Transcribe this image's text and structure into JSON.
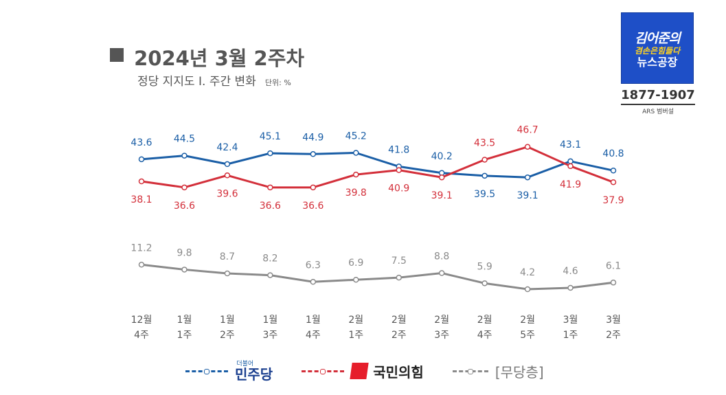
{
  "header": {
    "title": "2024년 3월 2주차",
    "subtitle": "정당 지지도 Ⅰ. 주간 변화",
    "unit": "단위: %"
  },
  "logo": {
    "line1": "김어준의",
    "line2": "겸손은힘들다",
    "line3": "뉴스공장",
    "phone": "1877-1907",
    "ars": "ARS 범버설"
  },
  "legend": {
    "minjoo": "민주당",
    "minjoo_prefix": "더불어",
    "ppp": "국민의힘",
    "independent": "[무당층]"
  },
  "colors": {
    "minjoo": "#1a5ea6",
    "ppp": "#d32f3a",
    "independent": "#8a8a8a"
  },
  "chart_data": {
    "type": "line",
    "categories": [
      [
        "12월",
        "4주"
      ],
      [
        "1월",
        "1주"
      ],
      [
        "1월",
        "2주"
      ],
      [
        "1월",
        "3주"
      ],
      [
        "1월",
        "4주"
      ],
      [
        "2월",
        "1주"
      ],
      [
        "2월",
        "2주"
      ],
      [
        "2월",
        "3주"
      ],
      [
        "2월",
        "4주"
      ],
      [
        "2월",
        "5주"
      ],
      [
        "3월",
        "1주"
      ],
      [
        "3월",
        "2주"
      ]
    ],
    "series": [
      {
        "name": "더불어민주당",
        "color": "#1a5ea6",
        "values": [
          43.6,
          44.5,
          42.4,
          45.1,
          44.9,
          45.2,
          41.8,
          40.2,
          39.5,
          39.1,
          43.1,
          40.8
        ],
        "labels": [
          "43.6",
          "44.5",
          "42.4",
          "45.1",
          "44.9",
          "45.2",
          "41.8",
          "40.2",
          "39.5",
          "39.1",
          "43.1",
          "40.8"
        ],
        "label_pos": [
          "above",
          "above",
          "above",
          "above",
          "above",
          "above",
          "above",
          "above",
          "below",
          "below",
          "above",
          "above"
        ]
      },
      {
        "name": "국민의힘",
        "color": "#d32f3a",
        "values": [
          38.1,
          36.6,
          39.6,
          36.6,
          36.6,
          39.8,
          40.9,
          39.1,
          43.5,
          46.7,
          41.9,
          37.9
        ],
        "labels": [
          "38.1",
          "36.6",
          "39.6",
          "36.6",
          "36.6",
          "39.8",
          "40.9",
          "39.1",
          "43.5",
          "46.7",
          "41.9",
          "37.9"
        ],
        "label_pos": [
          "below",
          "below",
          "below",
          "below",
          "below",
          "below",
          "below",
          "below",
          "above",
          "above",
          "below",
          "below"
        ]
      },
      {
        "name": "무당층",
        "color": "#8a8a8a",
        "values": [
          11.2,
          9.8,
          8.7,
          8.2,
          6.3,
          6.9,
          7.5,
          8.8,
          5.9,
          4.2,
          4.6,
          6.1
        ],
        "labels": [
          "11.2",
          "9.8",
          "8.7",
          "8.2",
          "6.3",
          "6.9",
          "7.5",
          "8.8",
          "5.9",
          "4.2",
          "4.6",
          "6.1"
        ],
        "label_pos": [
          "above",
          "above",
          "above",
          "above",
          "above",
          "above",
          "above",
          "above",
          "above",
          "above",
          "above",
          "above"
        ]
      }
    ],
    "grid": false
  }
}
